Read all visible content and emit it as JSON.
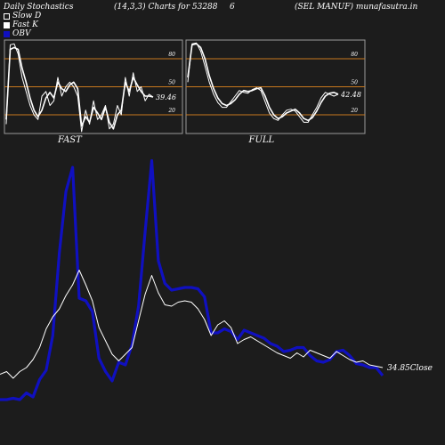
{
  "header": {
    "left": "Daily Stochastics",
    "params": "(14,3,3) Charts for 53288",
    "number": "6",
    "right": "(SEL MANUF) munafasutra.in"
  },
  "legend": [
    {
      "label": "Slow  D",
      "swatch": "outline"
    },
    {
      "label": "Fast K",
      "swatch": "white"
    },
    {
      "label": "OBV",
      "swatch": "blue"
    }
  ],
  "colors": {
    "background": "#1c1c1c",
    "panel_border": "#9a9a9a",
    "level_line": "#c8781e",
    "stoch_line": "#ffffff",
    "obv_line": "#1010c0",
    "price_line": "#ffffff"
  },
  "chart_data": [
    {
      "type": "line",
      "title": "FAST",
      "ylim": [
        0,
        100
      ],
      "levels": [
        20,
        50,
        80
      ],
      "tick_labels": [
        "80",
        "50",
        "20"
      ],
      "last_value_label": "39.46",
      "series": [
        {
          "values": [
            15,
            90,
            92,
            90,
            70,
            55,
            38,
            25,
            18,
            25,
            38,
            44,
            38,
            55,
            48,
            45,
            52,
            55,
            48,
            8,
            18,
            12,
            28,
            22,
            15,
            28,
            12,
            5,
            20,
            25,
            55,
            45,
            60,
            52,
            45,
            40,
            40,
            39
          ]
        },
        {
          "values": [
            10,
            95,
            96,
            85,
            60,
            45,
            30,
            20,
            15,
            40,
            45,
            30,
            35,
            60,
            40,
            50,
            55,
            50,
            40,
            2,
            25,
            10,
            35,
            15,
            20,
            30,
            5,
            10,
            30,
            20,
            60,
            40,
            65,
            45,
            50,
            35,
            42,
            39
          ]
        }
      ]
    },
    {
      "type": "line",
      "title": "FULL",
      "ylim": [
        0,
        100
      ],
      "levels": [
        20,
        50,
        80
      ],
      "tick_labels": [
        "80",
        "50",
        "20"
      ],
      "last_value_label": "42.48",
      "series": [
        {
          "values": [
            60,
            95,
            96,
            92,
            80,
            62,
            48,
            38,
            32,
            30,
            32,
            36,
            42,
            46,
            45,
            46,
            48,
            49,
            40,
            28,
            20,
            16,
            18,
            22,
            24,
            26,
            22,
            16,
            14,
            17,
            24,
            33,
            40,
            43,
            44,
            42
          ]
        },
        {
          "values": [
            55,
            96,
            97,
            88,
            72,
            55,
            42,
            33,
            28,
            28,
            34,
            40,
            46,
            44,
            43,
            47,
            49,
            46,
            34,
            22,
            16,
            14,
            20,
            25,
            26,
            24,
            18,
            12,
            12,
            20,
            28,
            38,
            44,
            42,
            40,
            42
          ]
        }
      ]
    },
    {
      "type": "line",
      "last_value_label": "34.85",
      "last_value_suffix": "Close",
      "series": [
        {
          "name": "OBV",
          "values": [
            34,
            34,
            35,
            34,
            39,
            36,
            49,
            56,
            82,
            144,
            190,
            208,
            110,
            108,
            100,
            65,
            55,
            48,
            62,
            60,
            75,
            104,
            160,
            213,
            138,
            121,
            116,
            117,
            118,
            118,
            117,
            111,
            84,
            84,
            87,
            85,
            79,
            86,
            84,
            82,
            80,
            76,
            74,
            70,
            71,
            73,
            73,
            67,
            63,
            62,
            64,
            70,
            71,
            67,
            61,
            60,
            58,
            58,
            52
          ]
        },
        {
          "values": [
            53,
            55,
            50,
            55,
            58,
            64,
            73,
            87,
            96,
            102,
            112,
            120,
            131,
            120,
            108,
            88,
            78,
            68,
            63,
            68,
            73,
            93,
            113,
            127,
            114,
            105,
            104,
            107,
            108,
            107,
            102,
            94,
            82,
            90,
            93,
            88,
            76,
            79,
            81,
            78,
            75,
            72,
            69,
            67,
            65,
            69,
            66,
            71,
            69,
            67,
            65,
            70,
            67,
            64,
            62,
            63,
            60,
            59,
            58
          ]
        }
      ]
    }
  ]
}
